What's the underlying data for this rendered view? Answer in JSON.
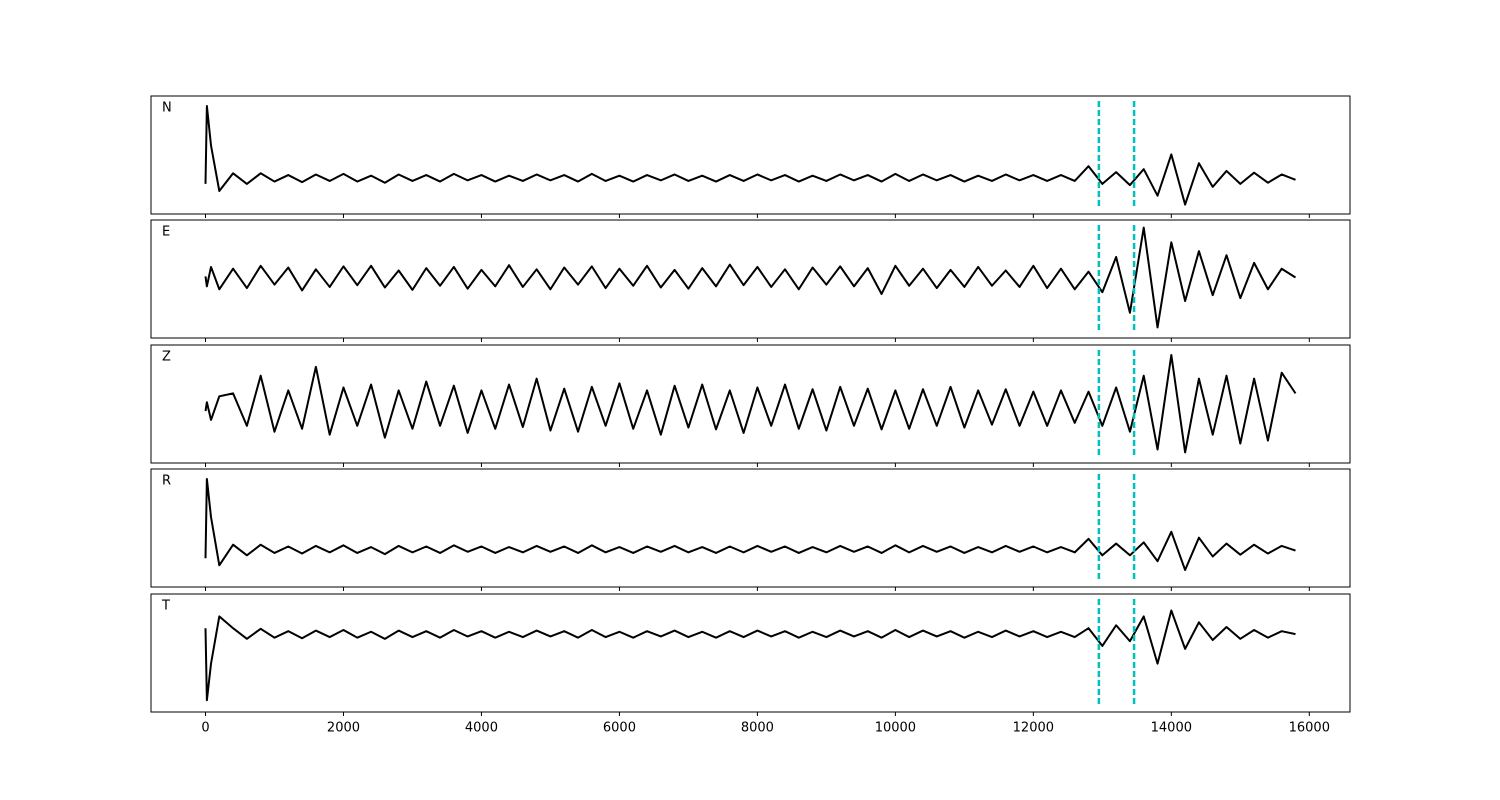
{
  "chart_data": {
    "type": "line",
    "x": [
      0,
      20,
      80,
      200,
      400,
      600,
      800,
      1000,
      1200,
      1400,
      1600,
      1800,
      2000,
      2200,
      2400,
      2600,
      2800,
      3000,
      3200,
      3400,
      3600,
      3800,
      4000,
      4200,
      4400,
      4600,
      4800,
      5000,
      5200,
      5400,
      5600,
      5800,
      6000,
      6200,
      6400,
      6600,
      6800,
      7000,
      7200,
      7400,
      7600,
      7800,
      8000,
      8200,
      8400,
      8600,
      8800,
      9000,
      9200,
      9400,
      9600,
      9800,
      10000,
      10200,
      10400,
      10600,
      10800,
      11000,
      11200,
      11400,
      11600,
      11800,
      12000,
      12200,
      12400,
      12600,
      12800,
      13000,
      13200,
      13400,
      13600,
      13800,
      14000,
      14200,
      14400,
      14600,
      14800,
      15000,
      15200,
      15400,
      15600,
      15800
    ],
    "xlim": [
      -790,
      16590
    ],
    "xticks": [
      0,
      2000,
      4000,
      6000,
      8000,
      10000,
      12000,
      14000,
      16000
    ],
    "vlines": [
      12950,
      13460
    ],
    "vline_color": "#00bfbf",
    "series": [
      {
        "name": "N",
        "color": "#000000",
        "ylim": [
          -0.61,
          1.39
        ],
        "values": [
          -0.1,
          1.22,
          0.55,
          -0.22,
          0.08,
          -0.1,
          0.08,
          -0.06,
          0.05,
          -0.07,
          0.06,
          -0.05,
          0.07,
          -0.06,
          0.04,
          -0.08,
          0.06,
          -0.05,
          0.05,
          -0.06,
          0.07,
          -0.04,
          0.05,
          -0.06,
          0.04,
          -0.05,
          0.06,
          -0.04,
          0.05,
          -0.06,
          0.07,
          -0.05,
          0.04,
          -0.06,
          0.05,
          -0.04,
          0.06,
          -0.05,
          0.04,
          -0.06,
          0.05,
          -0.05,
          0.06,
          -0.04,
          0.05,
          -0.06,
          0.04,
          -0.05,
          0.06,
          -0.04,
          0.05,
          -0.06,
          0.07,
          -0.05,
          0.06,
          -0.04,
          0.05,
          -0.06,
          0.04,
          -0.05,
          0.06,
          -0.04,
          0.05,
          -0.05,
          0.05,
          -0.05,
          0.2,
          -0.1,
          0.1,
          -0.12,
          0.15,
          -0.3,
          0.4,
          -0.45,
          0.25,
          -0.15,
          0.12,
          -0.1,
          0.09,
          -0.08,
          0.06,
          -0.03
        ]
      },
      {
        "name": "E",
        "color": "#000000",
        "ylim": [
          -1.03,
          0.98
        ],
        "values": [
          0.02,
          -0.15,
          0.18,
          -0.2,
          0.15,
          -0.18,
          0.2,
          -0.12,
          0.17,
          -0.22,
          0.14,
          -0.16,
          0.19,
          -0.13,
          0.2,
          -0.17,
          0.12,
          -0.21,
          0.16,
          -0.14,
          0.18,
          -0.19,
          0.13,
          -0.15,
          0.21,
          -0.16,
          0.14,
          -0.2,
          0.17,
          -0.12,
          0.19,
          -0.18,
          0.15,
          -0.14,
          0.2,
          -0.17,
          0.13,
          -0.19,
          0.16,
          -0.15,
          0.22,
          -0.13,
          0.18,
          -0.16,
          0.14,
          -0.2,
          0.17,
          -0.12,
          0.19,
          -0.15,
          0.16,
          -0.28,
          0.2,
          -0.14,
          0.15,
          -0.18,
          0.13,
          -0.16,
          0.18,
          -0.14,
          0.12,
          -0.16,
          0.2,
          -0.18,
          0.15,
          -0.2,
          0.1,
          -0.25,
          0.35,
          -0.6,
          0.85,
          -0.85,
          0.6,
          -0.4,
          0.45,
          -0.3,
          0.38,
          -0.35,
          0.25,
          -0.2,
          0.15,
          0.0
        ]
      },
      {
        "name": "Z",
        "color": "#000000",
        "ylim": [
          -0.93,
          1.07
        ],
        "values": [
          -0.05,
          0.1,
          -0.2,
          0.2,
          0.25,
          -0.3,
          0.55,
          -0.4,
          0.3,
          -0.35,
          0.7,
          -0.45,
          0.35,
          -0.3,
          0.4,
          -0.5,
          0.3,
          -0.35,
          0.45,
          -0.3,
          0.38,
          -0.42,
          0.3,
          -0.35,
          0.4,
          -0.32,
          0.5,
          -0.38,
          0.33,
          -0.4,
          0.36,
          -0.3,
          0.42,
          -0.35,
          0.3,
          -0.45,
          0.38,
          -0.33,
          0.4,
          -0.36,
          0.3,
          -0.42,
          0.35,
          -0.3,
          0.4,
          -0.35,
          0.32,
          -0.38,
          0.36,
          -0.3,
          0.33,
          -0.36,
          0.3,
          -0.35,
          0.32,
          -0.3,
          0.36,
          -0.33,
          0.3,
          -0.28,
          0.32,
          -0.3,
          0.28,
          -0.3,
          0.3,
          -0.25,
          0.28,
          -0.3,
          0.35,
          -0.4,
          0.55,
          -0.7,
          0.9,
          -0.75,
          0.5,
          -0.45,
          0.55,
          -0.6,
          0.5,
          -0.55,
          0.6,
          0.25
        ]
      },
      {
        "name": "R",
        "color": "#000000",
        "ylim": [
          -0.64,
          1.37
        ],
        "values": [
          -0.15,
          1.2,
          0.55,
          -0.27,
          0.08,
          -0.1,
          0.08,
          -0.06,
          0.05,
          -0.07,
          0.06,
          -0.05,
          0.07,
          -0.06,
          0.04,
          -0.08,
          0.06,
          -0.05,
          0.05,
          -0.06,
          0.07,
          -0.04,
          0.05,
          -0.06,
          0.04,
          -0.05,
          0.06,
          -0.04,
          0.05,
          -0.06,
          0.07,
          -0.05,
          0.04,
          -0.06,
          0.05,
          -0.04,
          0.06,
          -0.05,
          0.04,
          -0.06,
          0.05,
          -0.05,
          0.06,
          -0.04,
          0.05,
          -0.06,
          0.04,
          -0.05,
          0.06,
          -0.04,
          0.05,
          -0.06,
          0.07,
          -0.05,
          0.06,
          -0.04,
          0.05,
          -0.06,
          0.04,
          -0.05,
          0.06,
          -0.04,
          0.05,
          -0.05,
          0.04,
          -0.05,
          0.18,
          -0.1,
          0.1,
          -0.1,
          0.12,
          -0.2,
          0.3,
          -0.35,
          0.2,
          -0.12,
          0.1,
          -0.09,
          0.08,
          -0.07,
          0.06,
          -0.02
        ]
      },
      {
        "name": "T",
        "color": "#000000",
        "ylim": [
          -1.32,
          0.68
        ],
        "values": [
          0.1,
          -1.12,
          -0.5,
          0.3,
          0.1,
          -0.08,
          0.09,
          -0.06,
          0.05,
          -0.07,
          0.06,
          -0.05,
          0.07,
          -0.06,
          0.04,
          -0.08,
          0.06,
          -0.05,
          0.05,
          -0.06,
          0.07,
          -0.04,
          0.05,
          -0.06,
          0.04,
          -0.05,
          0.06,
          -0.04,
          0.05,
          -0.06,
          0.07,
          -0.05,
          0.04,
          -0.06,
          0.05,
          -0.04,
          0.06,
          -0.05,
          0.04,
          -0.06,
          0.05,
          -0.05,
          0.06,
          -0.04,
          0.05,
          -0.06,
          0.04,
          -0.05,
          0.06,
          -0.04,
          0.05,
          -0.06,
          0.07,
          -0.05,
          0.06,
          -0.04,
          0.05,
          -0.06,
          0.04,
          -0.05,
          0.06,
          -0.04,
          0.05,
          -0.05,
          0.04,
          -0.05,
          0.1,
          -0.2,
          0.15,
          -0.12,
          0.3,
          -0.5,
          0.4,
          -0.25,
          0.2,
          -0.1,
          0.12,
          -0.08,
          0.07,
          -0.06,
          0.05,
          0.0
        ]
      }
    ]
  }
}
